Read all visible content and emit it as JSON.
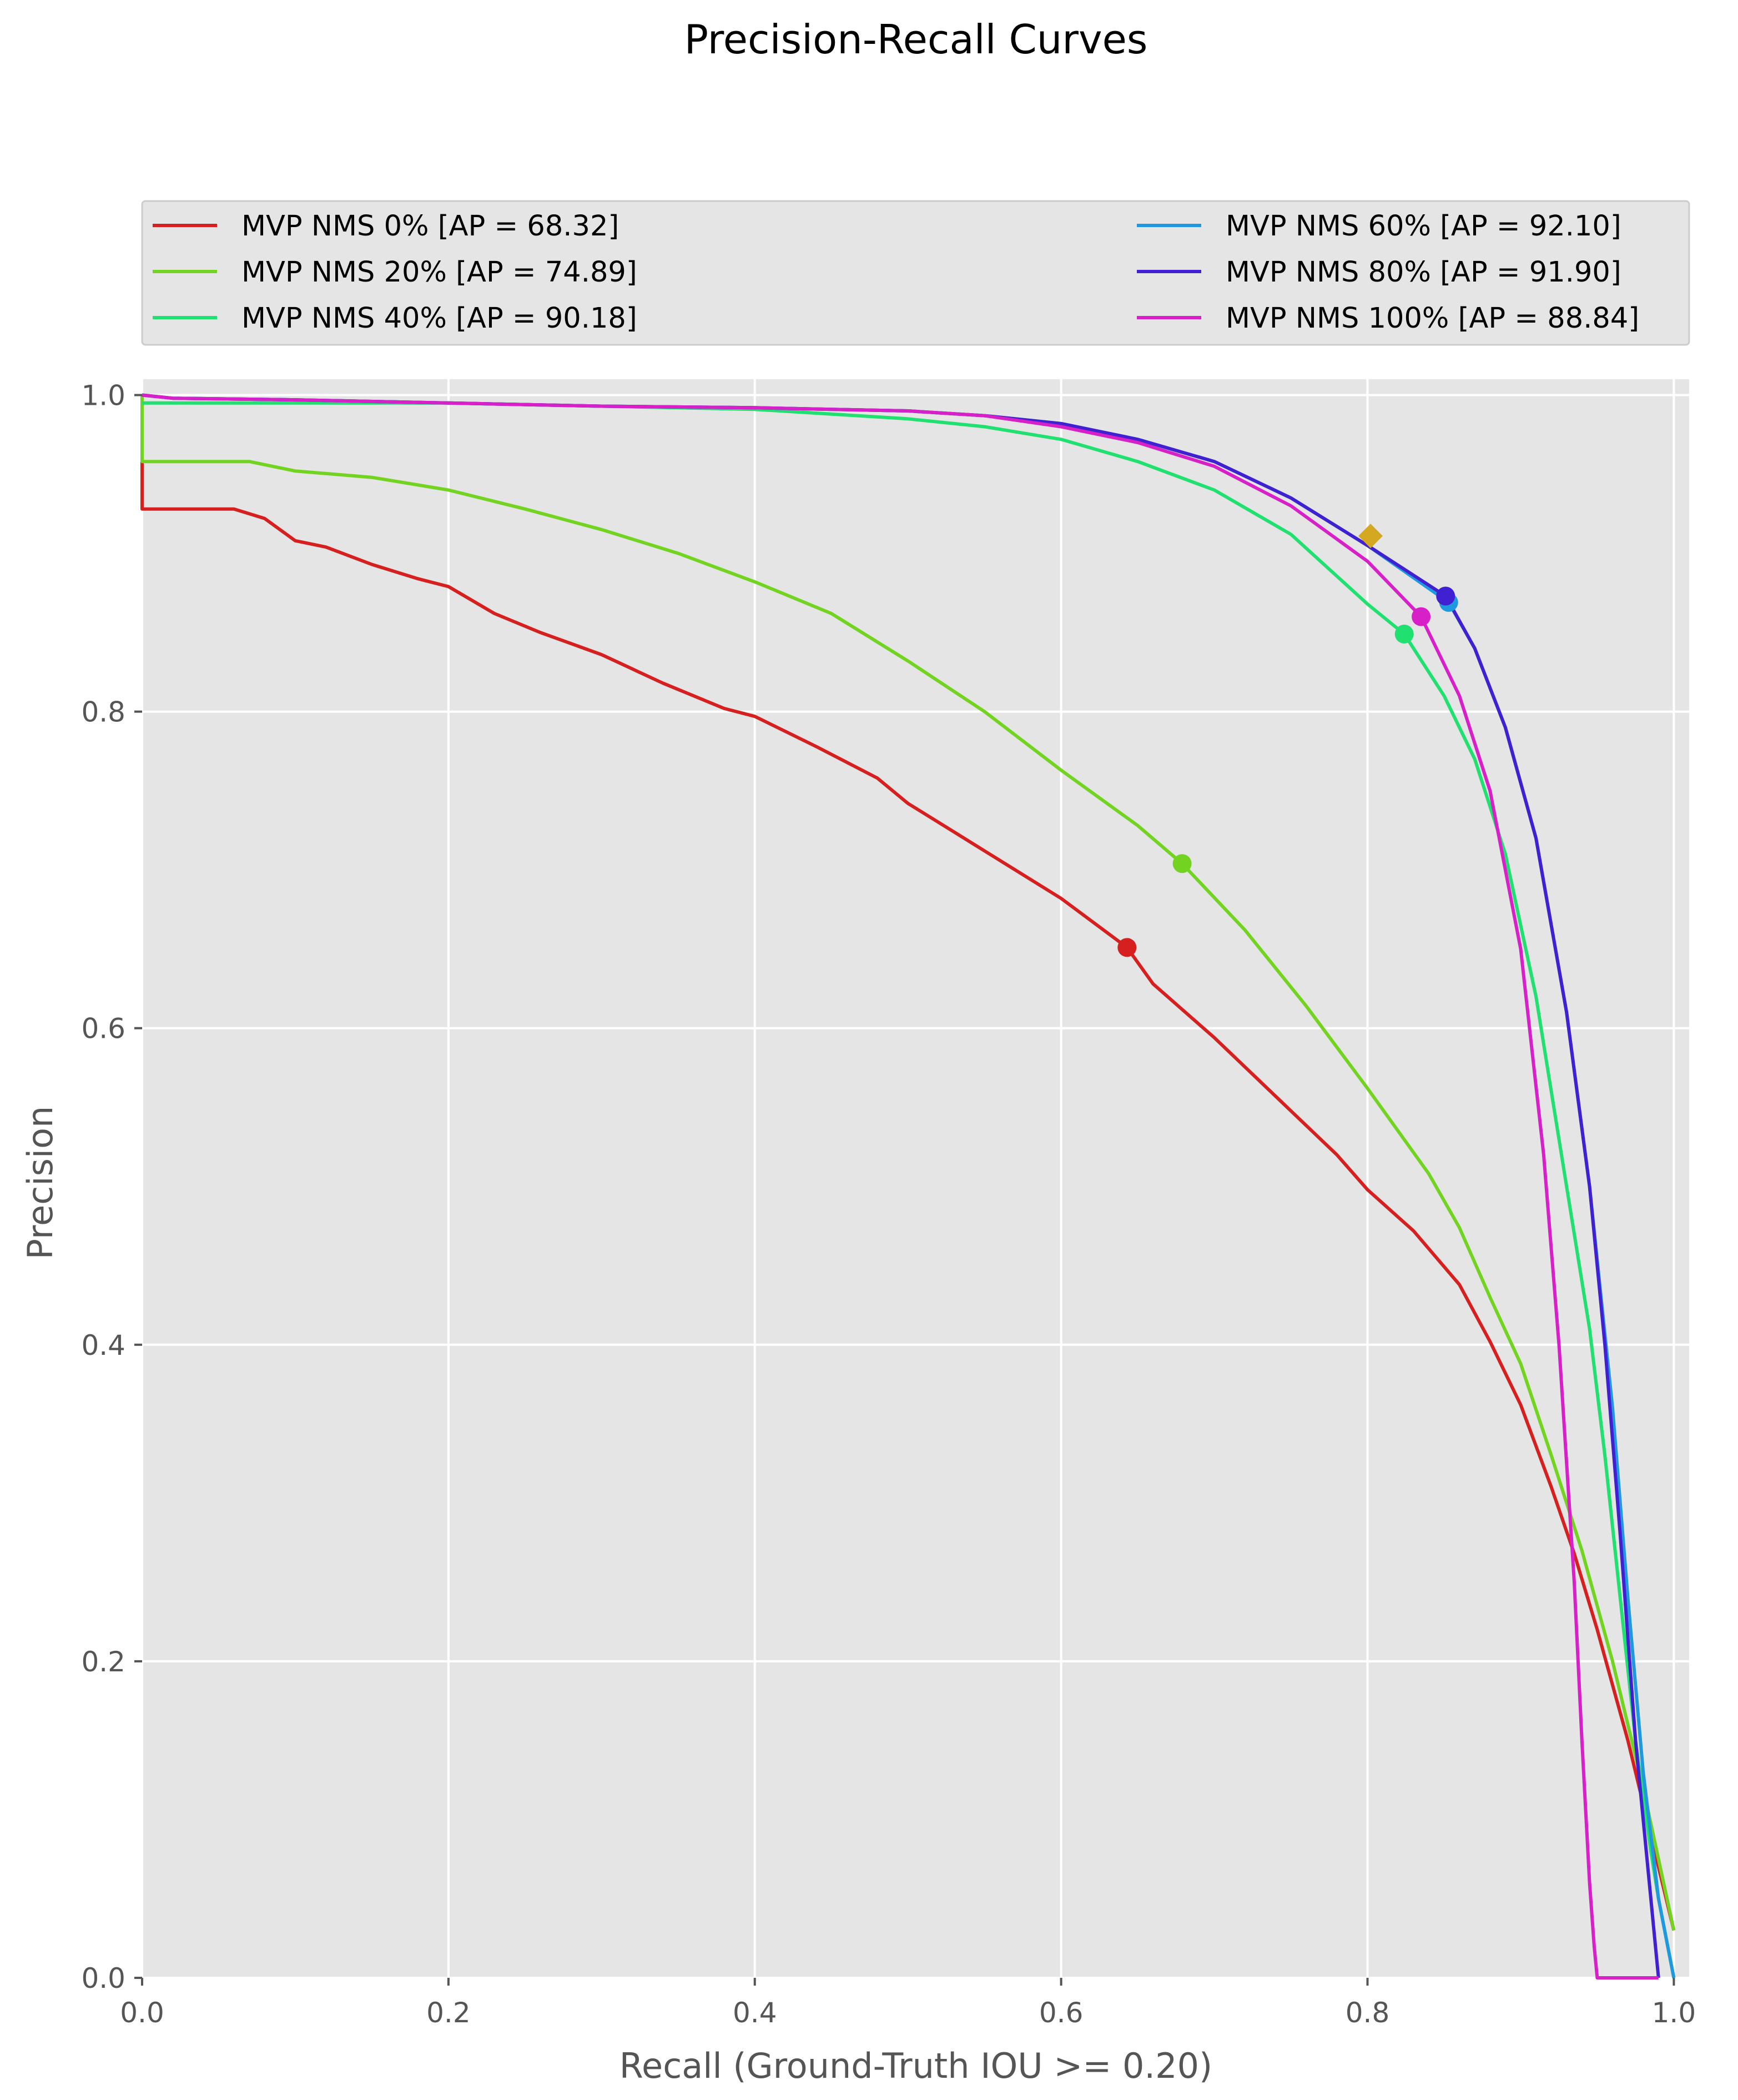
{
  "chart_data": {
    "type": "line",
    "title": "Precision-Recall Curves",
    "xlabel": "Recall (Ground-Truth IOU >= 0.20)",
    "ylabel": "Precision",
    "xlim": [
      0.0,
      1.01
    ],
    "ylim": [
      0.0,
      1.01
    ],
    "xticks": [
      "0.0",
      "0.2",
      "0.4",
      "0.6",
      "0.8",
      "1.0"
    ],
    "yticks": [
      "0.0",
      "0.2",
      "0.4",
      "0.6",
      "0.8",
      "1.0"
    ],
    "grid": true,
    "legend_position": "top, above plot, two columns",
    "series": [
      {
        "name": "MVP NMS 0% [AP = 68.32]",
        "color": "#d62020",
        "marker": {
          "x": 0.643,
          "y": 0.651
        },
        "x": [
          0.0,
          0.0,
          0.06,
          0.08,
          0.1,
          0.12,
          0.15,
          0.18,
          0.2,
          0.23,
          0.26,
          0.3,
          0.34,
          0.38,
          0.4,
          0.44,
          0.48,
          0.5,
          0.53,
          0.57,
          0.6,
          0.643,
          0.66,
          0.7,
          0.74,
          0.78,
          0.8,
          0.83,
          0.86,
          0.88,
          0.9,
          0.92,
          0.935,
          0.95,
          0.96,
          0.97,
          0.98,
          0.99,
          1.0
        ],
        "y": [
          0.96,
          0.928,
          0.928,
          0.922,
          0.908,
          0.904,
          0.893,
          0.884,
          0.879,
          0.862,
          0.85,
          0.836,
          0.818,
          0.802,
          0.797,
          0.778,
          0.758,
          0.742,
          0.724,
          0.7,
          0.682,
          0.651,
          0.628,
          0.594,
          0.557,
          0.52,
          0.498,
          0.472,
          0.438,
          0.402,
          0.362,
          0.31,
          0.268,
          0.22,
          0.185,
          0.15,
          0.11,
          0.07,
          0.03
        ]
      },
      {
        "name": "MVP NMS 20% [AP = 74.89]",
        "color": "#72d420",
        "marker": {
          "x": 0.679,
          "y": 0.704
        },
        "x": [
          0.0,
          0.0,
          0.07,
          0.1,
          0.15,
          0.2,
          0.25,
          0.3,
          0.35,
          0.4,
          0.45,
          0.5,
          0.55,
          0.6,
          0.65,
          0.679,
          0.72,
          0.76,
          0.8,
          0.84,
          0.86,
          0.88,
          0.9,
          0.92,
          0.94,
          0.96,
          0.98,
          0.99,
          1.0
        ],
        "y": [
          1.0,
          0.958,
          0.958,
          0.952,
          0.948,
          0.94,
          0.928,
          0.915,
          0.9,
          0.882,
          0.862,
          0.832,
          0.8,
          0.763,
          0.728,
          0.704,
          0.662,
          0.614,
          0.562,
          0.508,
          0.474,
          0.43,
          0.388,
          0.33,
          0.27,
          0.2,
          0.12,
          0.075,
          0.03
        ]
      },
      {
        "name": "MVP NMS 40% [AP = 90.18]",
        "color": "#20e070",
        "marker": {
          "x": 0.824,
          "y": 0.849
        },
        "x": [
          0.0,
          0.1,
          0.2,
          0.3,
          0.4,
          0.5,
          0.55,
          0.6,
          0.65,
          0.7,
          0.75,
          0.8,
          0.824,
          0.85,
          0.87,
          0.89,
          0.91,
          0.93,
          0.945,
          0.955,
          0.965,
          0.975,
          0.985,
          0.99,
          1.0
        ],
        "y": [
          0.995,
          0.995,
          0.995,
          0.993,
          0.991,
          0.985,
          0.98,
          0.972,
          0.958,
          0.94,
          0.912,
          0.868,
          0.849,
          0.81,
          0.77,
          0.71,
          0.62,
          0.5,
          0.41,
          0.33,
          0.24,
          0.15,
          0.08,
          0.05,
          0.0
        ]
      },
      {
        "name": "MVP NMS 60% [AP = 92.10]",
        "color": "#2098e0",
        "marker": {
          "x": 0.853,
          "y": 0.869
        },
        "x": [
          0.0,
          0.02,
          0.1,
          0.2,
          0.3,
          0.4,
          0.5,
          0.55,
          0.6,
          0.65,
          0.7,
          0.75,
          0.8,
          0.853,
          0.87,
          0.89,
          0.91,
          0.93,
          0.945,
          0.96,
          0.97,
          0.98,
          0.99,
          1.0
        ],
        "y": [
          1.0,
          0.998,
          0.997,
          0.995,
          0.993,
          0.992,
          0.99,
          0.987,
          0.982,
          0.972,
          0.958,
          0.935,
          0.905,
          0.869,
          0.84,
          0.79,
          0.72,
          0.61,
          0.5,
          0.36,
          0.24,
          0.13,
          0.05,
          0.0
        ]
      },
      {
        "name": "MVP NMS 80% [AP = 91.90]",
        "color": "#4020d0",
        "marker": {
          "x": 0.851,
          "y": 0.873
        },
        "x": [
          0.0,
          0.02,
          0.1,
          0.2,
          0.3,
          0.4,
          0.5,
          0.55,
          0.6,
          0.65,
          0.7,
          0.75,
          0.8,
          0.851,
          0.87,
          0.89,
          0.91,
          0.93,
          0.945,
          0.955,
          0.965,
          0.975,
          0.985,
          0.99
        ],
        "y": [
          1.0,
          0.998,
          0.997,
          0.995,
          0.993,
          0.992,
          0.99,
          0.987,
          0.982,
          0.972,
          0.958,
          0.935,
          0.905,
          0.873,
          0.84,
          0.79,
          0.72,
          0.61,
          0.5,
          0.4,
          0.28,
          0.15,
          0.05,
          0.0
        ]
      },
      {
        "name": "MVP NMS 100% [AP = 88.84]",
        "color": "#d820c8",
        "marker": {
          "x": 0.835,
          "y": 0.86
        },
        "x": [
          0.0,
          0.02,
          0.1,
          0.2,
          0.3,
          0.4,
          0.5,
          0.55,
          0.6,
          0.65,
          0.7,
          0.75,
          0.8,
          0.835,
          0.86,
          0.88,
          0.9,
          0.915,
          0.925,
          0.935,
          0.94,
          0.945,
          0.948,
          0.95,
          0.99
        ],
        "y": [
          1.0,
          0.998,
          0.997,
          0.995,
          0.993,
          0.992,
          0.99,
          0.987,
          0.98,
          0.97,
          0.955,
          0.93,
          0.895,
          0.86,
          0.81,
          0.75,
          0.65,
          0.52,
          0.4,
          0.25,
          0.15,
          0.06,
          0.02,
          0.0,
          0.0
        ]
      }
    ],
    "extra_marker": {
      "shape": "diamond",
      "color": "#d4a820",
      "x": 0.802,
      "y": 0.911
    }
  }
}
